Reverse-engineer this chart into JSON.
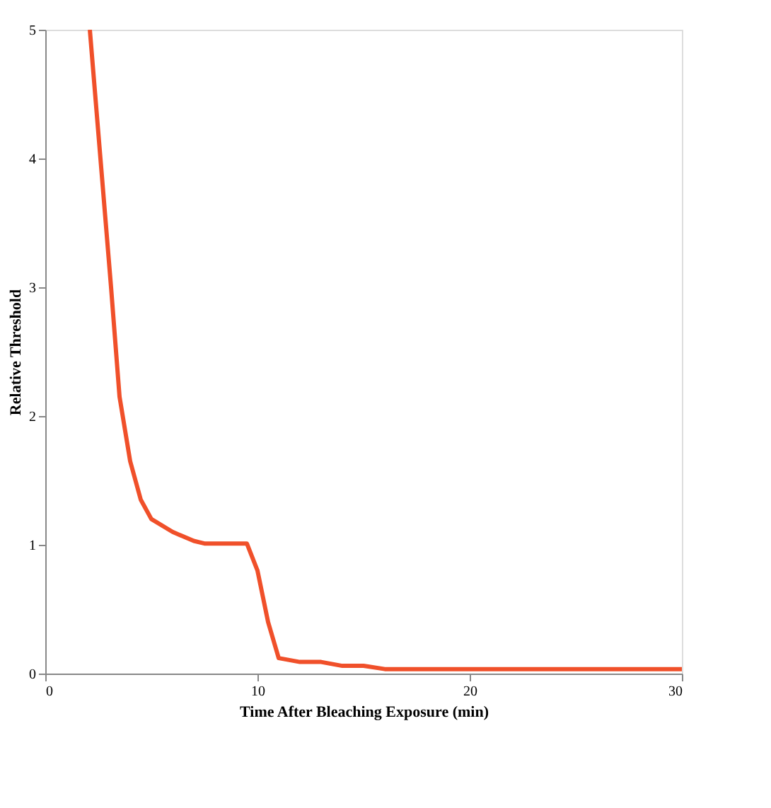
{
  "chart_data": {
    "type": "line",
    "xlabel": "Time After Bleaching Exposure (min)",
    "ylabel": "Relative Threshold",
    "xlim": [
      0,
      30
    ],
    "ylim": [
      0,
      5
    ],
    "xticks": [
      0,
      10,
      20,
      30
    ],
    "yticks": [
      0,
      1,
      2,
      3,
      4,
      5
    ],
    "grid": false,
    "marker": "none",
    "line_style": "solid",
    "series": [
      {
        "color": "#f0502a",
        "x": [
          2.1,
          2.6,
          3.1,
          3.5,
          4.0,
          4.5,
          5.0,
          6.0,
          7.0,
          7.5,
          9.5,
          10.0,
          10.5,
          11.0,
          12.0,
          13.0,
          14.0,
          15.0,
          16.0,
          30.0
        ],
        "values": [
          5,
          4,
          3,
          2.15,
          1.65,
          1.35,
          1.2,
          1.1,
          1.03,
          1.01,
          1.01,
          0.8,
          0.4,
          0.12,
          0.09,
          0.09,
          0.06,
          0.06,
          0.035,
          0.035
        ]
      }
    ]
  }
}
